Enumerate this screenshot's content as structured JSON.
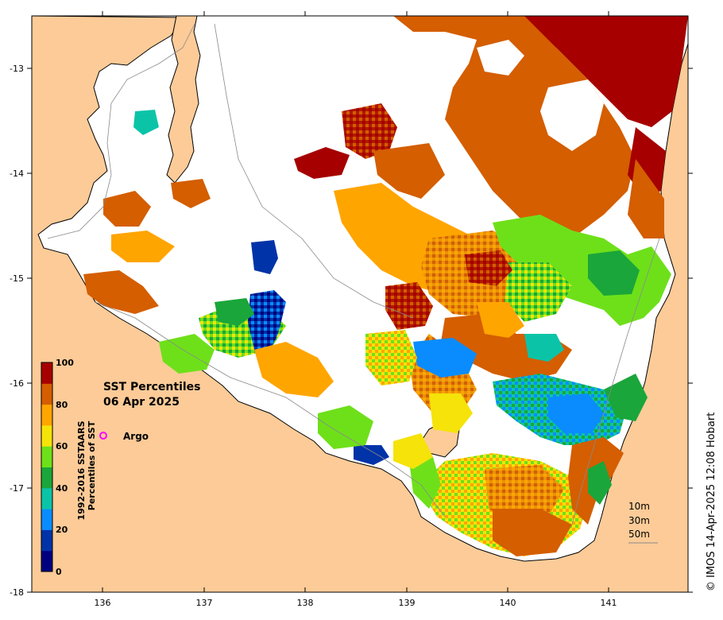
{
  "map": {
    "title_line1": "SST Percentiles",
    "title_line2": "06 Apr 2025",
    "x_ticks": [
      "136",
      "137",
      "138",
      "139",
      "140",
      "141"
    ],
    "y_ticks": [
      "-13",
      "-14",
      "-15",
      "-16",
      "-17",
      "-18"
    ],
    "land_color": "#fccb98",
    "ocean_no_data_color": "#ffffff"
  },
  "colorbar": {
    "tick_labels": [
      "100",
      "80",
      "60",
      "40",
      "20",
      "0"
    ],
    "axis_label_line1": "1992-2016 SSTAARS",
    "axis_label_line2": "Percentiles of SST",
    "colors": [
      "#00007f",
      "#0033a8",
      "#0a8cff",
      "#0bc4a8",
      "#1aa63a",
      "#6ee01a",
      "#f5e30a",
      "#ffa500",
      "#d45e00",
      "#a60000"
    ]
  },
  "legend": {
    "argo_label": "Argo",
    "argo_color": "#ff00ff",
    "contours": [
      "10m",
      "30m",
      "50m"
    ]
  },
  "credit": "© IMOS 14-Apr-2025 12:08 Hobart"
}
